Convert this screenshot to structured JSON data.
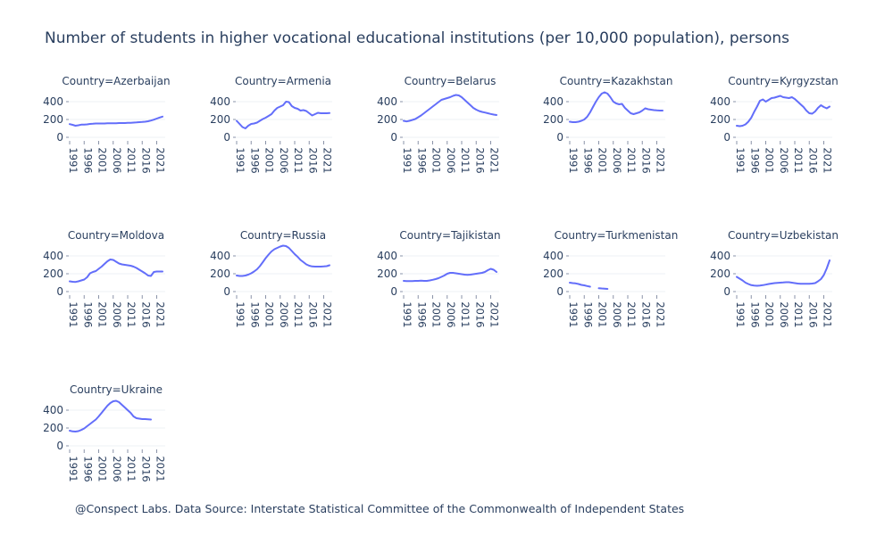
{
  "title": "Number of students in higher vocational educational institutions (per 10,000 population), persons",
  "source": "@Conspect Labs. Data Source: Interstate Statistical Committee of the Commonwealth of Independent States",
  "line_color": "#636efa",
  "chart_data": {
    "type": "line",
    "facet_label_prefix": "Country=",
    "x_ticks": [
      1991,
      1996,
      2001,
      2006,
      2011,
      2016,
      2021
    ],
    "y_ticks": [
      0,
      200,
      400
    ],
    "xlim": [
      1991,
      2023
    ],
    "ylim": [
      0,
      520
    ],
    "series": [
      {
        "name": "Azerbaijan",
        "x": [
          1991,
          1992,
          1993,
          1994,
          1995,
          1996,
          1997,
          1998,
          1999,
          2000,
          2001,
          2002,
          2003,
          2004,
          2005,
          2006,
          2007,
          2008,
          2009,
          2010,
          2011,
          2012,
          2013,
          2014,
          2015,
          2016,
          2017,
          2018,
          2019,
          2020,
          2021,
          2022,
          2023
        ],
        "y": [
          148,
          140,
          130,
          135,
          142,
          142,
          145,
          150,
          152,
          155,
          155,
          155,
          155,
          157,
          158,
          157,
          158,
          160,
          160,
          160,
          162,
          163,
          165,
          167,
          170,
          172,
          175,
          180,
          188,
          198,
          210,
          222,
          232
        ]
      },
      {
        "name": "Armenia",
        "x": [
          1991,
          1992,
          1993,
          1994,
          1995,
          1996,
          1997,
          1998,
          1999,
          2000,
          2001,
          2002,
          2003,
          2004,
          2005,
          2006,
          2007,
          2008,
          2009,
          2010,
          2011,
          2012,
          2013,
          2014,
          2015,
          2016,
          2017,
          2018,
          2019,
          2020,
          2021,
          2022,
          2023
        ],
        "y": [
          185,
          150,
          115,
          100,
          130,
          150,
          155,
          165,
          185,
          205,
          220,
          240,
          260,
          300,
          330,
          345,
          360,
          400,
          395,
          350,
          330,
          320,
          300,
          305,
          295,
          270,
          245,
          260,
          275,
          270,
          270,
          270,
          272
        ]
      },
      {
        "name": "Belarus",
        "x": [
          1991,
          1992,
          1993,
          1994,
          1995,
          1996,
          1997,
          1998,
          1999,
          2000,
          2001,
          2002,
          2003,
          2004,
          2005,
          2006,
          2007,
          2008,
          2009,
          2010,
          2011,
          2012,
          2013,
          2014,
          2015,
          2016,
          2017,
          2018,
          2019,
          2020,
          2021,
          2022,
          2023
        ],
        "y": [
          185,
          178,
          185,
          195,
          205,
          225,
          245,
          270,
          295,
          320,
          345,
          370,
          395,
          420,
          430,
          440,
          450,
          465,
          475,
          470,
          450,
          420,
          390,
          360,
          330,
          310,
          295,
          285,
          278,
          270,
          262,
          255,
          250
        ]
      },
      {
        "name": "Kazakhstan",
        "x": [
          1991,
          1992,
          1993,
          1994,
          1995,
          1996,
          1997,
          1998,
          1999,
          2000,
          2001,
          2002,
          2003,
          2004,
          2005,
          2006,
          2007,
          2008,
          2009,
          2010,
          2011,
          2012,
          2013,
          2014,
          2015,
          2016,
          2017,
          2018,
          2019,
          2020,
          2021,
          2022,
          2023
        ],
        "y": [
          175,
          170,
          170,
          175,
          185,
          200,
          230,
          280,
          340,
          400,
          450,
          490,
          505,
          490,
          450,
          400,
          380,
          370,
          375,
          330,
          300,
          270,
          260,
          270,
          280,
          300,
          325,
          315,
          310,
          305,
          302,
          300,
          300
        ]
      },
      {
        "name": "Kyrgyzstan",
        "x": [
          1991,
          1992,
          1993,
          1994,
          1995,
          1996,
          1997,
          1998,
          1999,
          2000,
          2001,
          2002,
          2003,
          2004,
          2005,
          2006,
          2007,
          2008,
          2009,
          2010,
          2011,
          2012,
          2013,
          2014,
          2015,
          2016,
          2017,
          2018,
          2019,
          2020,
          2021,
          2022,
          2023
        ],
        "y": [
          130,
          125,
          130,
          145,
          175,
          220,
          285,
          345,
          410,
          425,
          400,
          420,
          440,
          445,
          455,
          465,
          450,
          445,
          440,
          450,
          430,
          400,
          370,
          340,
          300,
          270,
          265,
          290,
          330,
          360,
          340,
          325,
          345
        ]
      },
      {
        "name": "Moldova",
        "x": [
          1991,
          1992,
          1993,
          1994,
          1995,
          1996,
          1997,
          1998,
          1999,
          2000,
          2001,
          2002,
          2003,
          2004,
          2005,
          2006,
          2007,
          2008,
          2009,
          2010,
          2011,
          2012,
          2013,
          2014,
          2015,
          2016,
          2017,
          2018,
          2019,
          2020,
          2021,
          2022,
          2023
        ],
        "y": [
          115,
          110,
          108,
          115,
          125,
          135,
          160,
          205,
          220,
          230,
          255,
          280,
          310,
          340,
          360,
          355,
          335,
          315,
          305,
          300,
          295,
          290,
          280,
          265,
          245,
          225,
          205,
          180,
          175,
          220,
          225,
          225,
          225
        ]
      },
      {
        "name": "Russia",
        "x": [
          1991,
          1992,
          1993,
          1994,
          1995,
          1996,
          1997,
          1998,
          1999,
          2000,
          2001,
          2002,
          2003,
          2004,
          2005,
          2006,
          2007,
          2008,
          2009,
          2010,
          2011,
          2012,
          2013,
          2014,
          2015,
          2016,
          2017,
          2018,
          2019,
          2020,
          2021,
          2022,
          2023
        ],
        "y": [
          180,
          175,
          175,
          180,
          190,
          205,
          225,
          250,
          285,
          330,
          375,
          415,
          450,
          475,
          490,
          505,
          515,
          510,
          490,
          455,
          420,
          390,
          355,
          330,
          305,
          290,
          282,
          280,
          280,
          280,
          282,
          285,
          295
        ]
      },
      {
        "name": "Tajikistan",
        "x": [
          1991,
          1992,
          1993,
          1994,
          1995,
          1996,
          1997,
          1998,
          1999,
          2000,
          2001,
          2002,
          2003,
          2004,
          2005,
          2006,
          2007,
          2008,
          2009,
          2010,
          2011,
          2012,
          2013,
          2014,
          2015,
          2016,
          2017,
          2018,
          2019,
          2020,
          2021,
          2022,
          2023
        ],
        "y": [
          120,
          118,
          117,
          118,
          120,
          120,
          122,
          120,
          120,
          125,
          132,
          140,
          150,
          165,
          180,
          200,
          210,
          210,
          205,
          200,
          195,
          190,
          188,
          190,
          195,
          200,
          205,
          210,
          220,
          240,
          255,
          245,
          220
        ]
      },
      {
        "name": "Turkmenistan",
        "x": [
          1991,
          1992,
          1993,
          1994,
          1995,
          1996,
          1997,
          1998,
          1999,
          2000,
          2001,
          2002,
          2003,
          2004
        ],
        "y": [
          100,
          95,
          92,
          85,
          75,
          70,
          62,
          55,
          null,
          null,
          38,
          35,
          33,
          30
        ]
      },
      {
        "name": "Uzbekistan",
        "x": [
          1991,
          1992,
          1993,
          1994,
          1995,
          1996,
          1997,
          1998,
          1999,
          2000,
          2001,
          2002,
          2003,
          2004,
          2005,
          2006,
          2007,
          2008,
          2009,
          2010,
          2011,
          2012,
          2013,
          2014,
          2015,
          2016,
          2017,
          2018,
          2019,
          2020,
          2021,
          2022,
          2023
        ],
        "y": [
          165,
          145,
          125,
          100,
          85,
          72,
          68,
          65,
          68,
          72,
          78,
          85,
          90,
          95,
          98,
          100,
          102,
          105,
          105,
          100,
          95,
          90,
          88,
          88,
          88,
          88,
          90,
          95,
          115,
          140,
          185,
          260,
          350
        ]
      },
      {
        "name": "Ukraine",
        "x": [
          1991,
          1992,
          1993,
          1994,
          1995,
          1996,
          1997,
          1998,
          1999,
          2000,
          2001,
          2002,
          2003,
          2004,
          2005,
          2006,
          2007,
          2008,
          2009,
          2010,
          2011,
          2012,
          2013,
          2014,
          2015,
          2016,
          2017,
          2018,
          2019,
          2020,
          2021,
          2022
        ],
        "y": [
          170,
          162,
          160,
          165,
          178,
          195,
          220,
          245,
          270,
          295,
          330,
          370,
          410,
          450,
          480,
          500,
          505,
          490,
          460,
          430,
          400,
          370,
          330,
          310,
          305,
          300,
          300,
          298,
          295,
          null,
          null,
          null
        ]
      }
    ]
  }
}
